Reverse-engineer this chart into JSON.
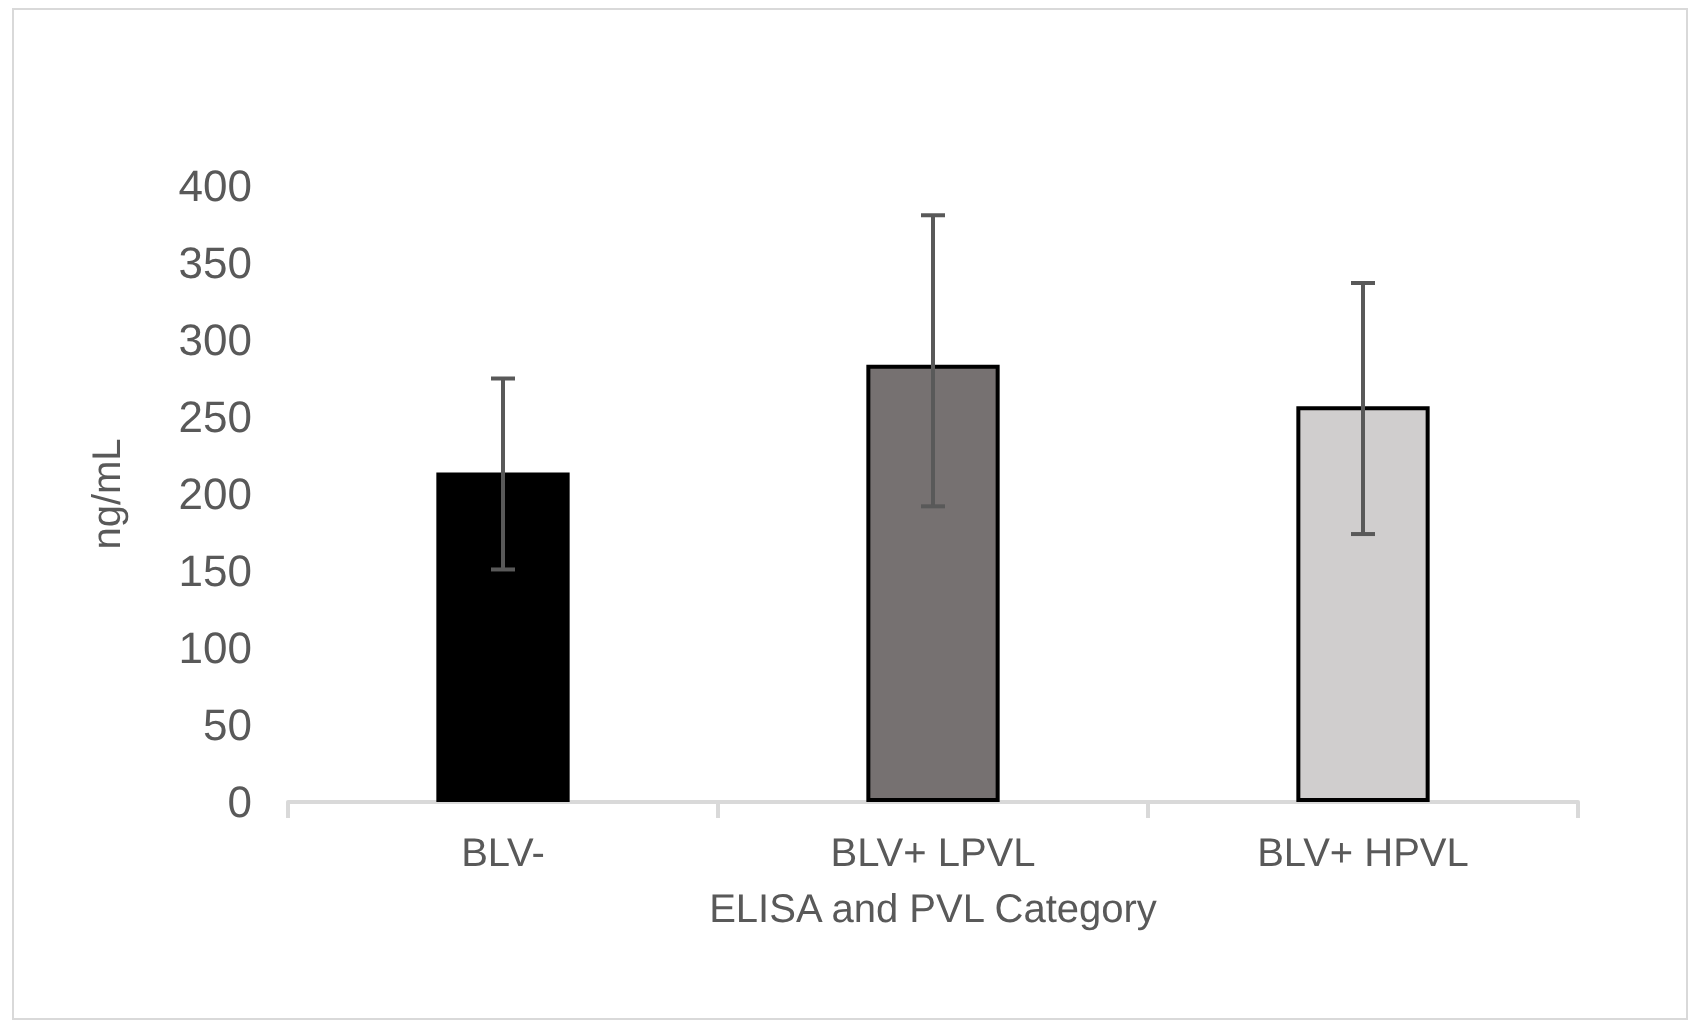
{
  "chart_data": {
    "type": "bar",
    "xlabel": "ELISA and PVL Category",
    "ylabel": "ng/mL",
    "categories": [
      "BLV-",
      "BLV+ LPVL",
      "BLV+ HPVL"
    ],
    "values": [
      214,
      284,
      257
    ],
    "colors": [
      "#000000",
      "#767171",
      "#d0cece"
    ],
    "errors": [
      [
        151,
        275
      ],
      [
        192,
        381
      ],
      [
        174,
        337
      ]
    ],
    "ylim": [
      0,
      400
    ],
    "yticks": [
      0,
      50,
      100,
      150,
      200,
      250,
      300,
      350,
      400
    ],
    "grid": false
  }
}
